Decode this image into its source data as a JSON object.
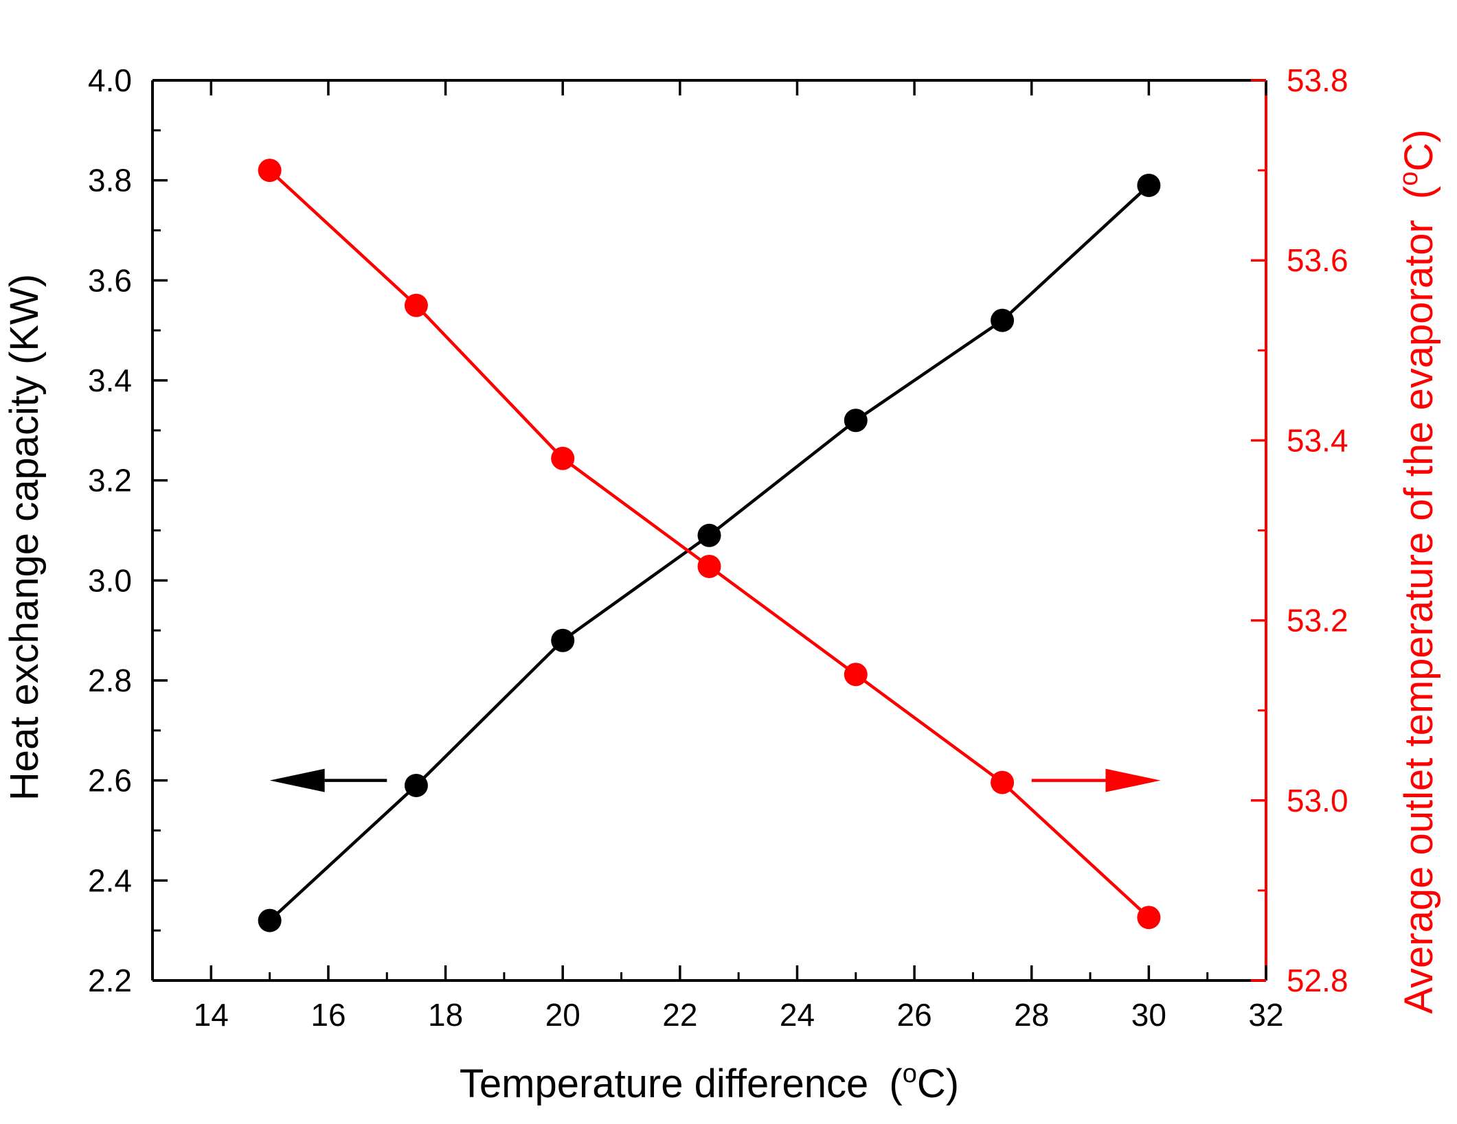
{
  "chart_data": {
    "type": "line",
    "title": "",
    "xlabel": "Temperature difference",
    "xlabel_unit_prefix": "(",
    "xlabel_unit_sup": "o",
    "xlabel_unit_suffix": "C)",
    "ylabel": "Heat exchange capacity (KW)",
    "y2label": "Average outlet temperature of the evaporator",
    "y2label_unit_prefix": "(",
    "y2label_unit_sup": "o",
    "y2label_unit_suffix": "C)",
    "xlim": [
      13,
      32
    ],
    "ylim": [
      2.2,
      4.0
    ],
    "y2lim": [
      52.8,
      53.8
    ],
    "xticks": [
      14,
      16,
      18,
      20,
      22,
      24,
      26,
      28,
      30,
      32
    ],
    "yticks": [
      2.2,
      2.4,
      2.6,
      2.8,
      3.0,
      3.2,
      3.4,
      3.6,
      3.8,
      4.0
    ],
    "y2ticks": [
      52.8,
      53.0,
      53.2,
      53.4,
      53.6,
      53.8
    ],
    "x": [
      15,
      17.5,
      20,
      22.5,
      25,
      27.5,
      30
    ],
    "series": [
      {
        "name": "Heat exchange capacity",
        "axis": "left",
        "color": "#000000",
        "values": [
          2.32,
          2.59,
          2.88,
          3.09,
          3.32,
          3.52,
          3.79
        ]
      },
      {
        "name": "Average outlet temperature of the evaporator",
        "axis": "right",
        "color": "#ff0000",
        "values": [
          53.7,
          53.55,
          53.38,
          53.26,
          53.14,
          53.02,
          52.87
        ]
      }
    ],
    "annotations": [
      {
        "type": "arrow",
        "direction": "left",
        "color": "#000000",
        "axis": "left",
        "x_from": 17.0,
        "x_to": 15.0,
        "y": 2.6
      },
      {
        "type": "arrow",
        "direction": "right",
        "color": "#ff0000",
        "axis": "left",
        "x_from": 28.0,
        "x_to": 30.2,
        "y": 2.6
      }
    ],
    "tick_format_decimals": 1
  }
}
